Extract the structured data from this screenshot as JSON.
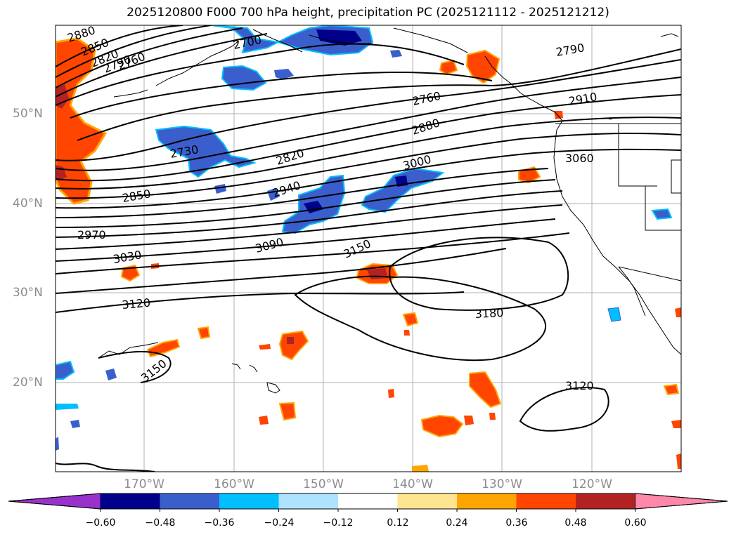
{
  "title": "2025120800 F000 700 hPa height, precipitation PC (2025121112 - 2025121212)",
  "lat_labels": [
    "50°N",
    "40°N",
    "30°N",
    "20°N"
  ],
  "lon_labels": [
    "170°W",
    "160°W",
    "150°W",
    "140°W",
    "130°W",
    "120°W"
  ],
  "contour_labels": [
    "2880",
    "2850",
    "2820",
    "2790",
    "2760",
    "2700",
    "2730",
    "2820",
    "2850",
    "2940",
    "2970",
    "3030",
    "3090",
    "3000",
    "2880",
    "2760",
    "2790",
    "2910",
    "3060",
    "3150",
    "3120",
    "3180",
    "3150",
    "3120"
  ],
  "colorbar": {
    "ticks": [
      "−0.60",
      "−0.48",
      "−0.36",
      "−0.24",
      "−0.12",
      "0.12",
      "0.24",
      "0.36",
      "0.48",
      "0.60"
    ],
    "colors": [
      "#9932cc",
      "#00008b",
      "#3a5fcd",
      "#00bfff",
      "#aee2ff",
      "#ffffff",
      "#ffe58f",
      "#ffa500",
      "#ff4500",
      "#b22222",
      "#ff88aa"
    ]
  }
}
